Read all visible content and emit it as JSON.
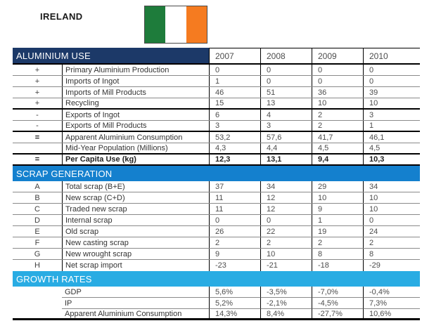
{
  "page": {
    "country": "IRELAND",
    "flag": {
      "name": "ireland-flag",
      "stripe_colors": [
        "#1E7C3B",
        "#FFFFFF",
        "#F57B20"
      ]
    }
  },
  "colors": {
    "aluminium_header": "#1C3968",
    "scrap_header": "#1480CE",
    "growth_header": "#29ACE3",
    "grid_gray": "#8a8a8a",
    "grid_black": "#000000"
  },
  "table": {
    "years": [
      "2007",
      "2008",
      "2009",
      "2010"
    ],
    "sections": [
      {
        "title": "ALUMINIUM USE",
        "header_bg": "#1C3968",
        "rows": [
          {
            "symbol": "+",
            "label": "Primary Aluminium Production",
            "values": [
              "0",
              "0",
              "0",
              "0"
            ],
            "border": "gray"
          },
          {
            "symbol": "+",
            "label": "Imports of Ingot",
            "values": [
              "1",
              "0",
              "0",
              "0"
            ],
            "border": "gray"
          },
          {
            "symbol": "+",
            "label": "Imports of Mill Products",
            "values": [
              "46",
              "51",
              "36",
              "39"
            ],
            "border": "gray"
          },
          {
            "symbol": "+",
            "label": "Recycling",
            "values": [
              "15",
              "13",
              "10",
              "10"
            ],
            "border": "black"
          },
          {
            "symbol": "-",
            "label": "Exports of Ingot",
            "values": [
              "6",
              "4",
              "2",
              "3"
            ],
            "border": "gray"
          },
          {
            "symbol": "-",
            "label": "Exports of Mill Products",
            "values": [
              "3",
              "3",
              "2",
              "1"
            ],
            "border": "black"
          },
          {
            "symbol": "=",
            "label": "Apparent Aluminium Consumption",
            "values": [
              "53,2",
              "57,6",
              "41,7",
              "46,1"
            ],
            "border": "gray"
          },
          {
            "symbol": "",
            "label": "Mid-Year Population (Millions)",
            "values": [
              "4,3",
              "4,4",
              "4,5",
              "4,5"
            ],
            "border": "black"
          },
          {
            "symbol": "=",
            "label": "Per Capita Use (kg)",
            "values": [
              "12,3",
              "13,1",
              "9,4",
              "10,3"
            ],
            "border": "black",
            "bold": true
          }
        ]
      },
      {
        "title": "SCRAP GENERATION",
        "header_bg": "#1480CE",
        "rows": [
          {
            "symbol": "A",
            "label": "Total scrap (B+E)",
            "values": [
              "37",
              "34",
              "29",
              "34"
            ],
            "border": "gray"
          },
          {
            "symbol": "B",
            "label": "New scrap (C+D)",
            "values": [
              "11",
              "12",
              "10",
              "10"
            ],
            "border": "gray"
          },
          {
            "symbol": "C",
            "label": "Traded new scrap",
            "values": [
              "11",
              "12",
              "9",
              "10"
            ],
            "border": "gray"
          },
          {
            "symbol": "D",
            "label": "Internal scrap",
            "values": [
              "0",
              "0",
              "1",
              "0"
            ],
            "border": "gray"
          },
          {
            "symbol": "E",
            "label": "Old scrap",
            "values": [
              "26",
              "22",
              "19",
              "24"
            ],
            "border": "gray"
          },
          {
            "symbol": "F",
            "label": "New casting scrap",
            "values": [
              "2",
              "2",
              "2",
              "2"
            ],
            "border": "gray"
          },
          {
            "symbol": "G",
            "label": "New wrought scrap",
            "values": [
              "9",
              "10",
              "8",
              "8"
            ],
            "border": "gray"
          },
          {
            "symbol": "H",
            "label": "Net scrap import",
            "values": [
              "-23",
              "-21",
              "-18",
              "-29"
            ],
            "border": "none"
          }
        ]
      },
      {
        "title": "GROWTH RATES",
        "header_bg": "#29ACE3",
        "no_symbol_col": true,
        "rows": [
          {
            "symbol": "",
            "label": "GDP",
            "values": [
              "5,6%",
              "-3,5%",
              "-7,0%",
              "-0,4%"
            ],
            "border": "gray"
          },
          {
            "symbol": "",
            "label": "IP",
            "values": [
              "5,2%",
              "-2,1%",
              "-4,5%",
              "7,3%"
            ],
            "border": "gray"
          },
          {
            "symbol": "",
            "label": "Apparent Aluminium Consumption",
            "values": [
              "14,3%",
              "8,4%",
              "-27,7%",
              "10,6%"
            ],
            "border": "thick"
          }
        ]
      }
    ]
  }
}
